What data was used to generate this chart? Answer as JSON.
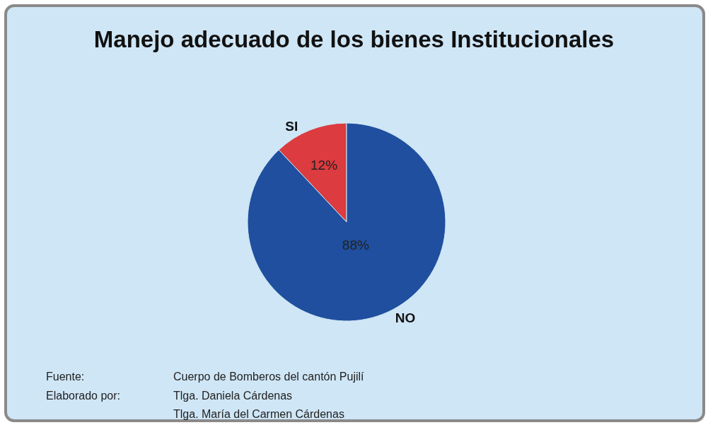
{
  "chart_data": {
    "type": "pie",
    "title": "Manejo adecuado de los bienes Institucionales",
    "categories": [
      "SI",
      "NO"
    ],
    "values": [
      12,
      88
    ],
    "colors": [
      "#dc3b3f",
      "#1f4f9e"
    ],
    "value_labels": [
      "12%",
      "88%"
    ],
    "legend": false,
    "annotations": [
      "Fuente:",
      "Cuerpo de Bomberos del cantón Pujilí",
      "Elaborado por:",
      "Tlga. Daniela Cárdenas",
      "Tlga. María del Carmen Cárdenas"
    ]
  }
}
